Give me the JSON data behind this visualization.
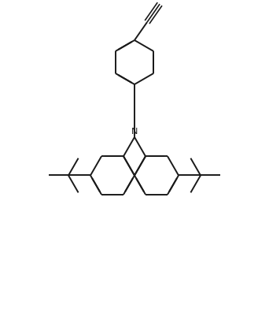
{
  "background_color": "#ffffff",
  "line_color": "#1a1a1a",
  "line_width": 1.4,
  "figure_size": [
    3.42,
    3.92
  ],
  "dpi": 100,
  "N_label_fontsize": 9,
  "N_carbazole_fontsize": 8
}
